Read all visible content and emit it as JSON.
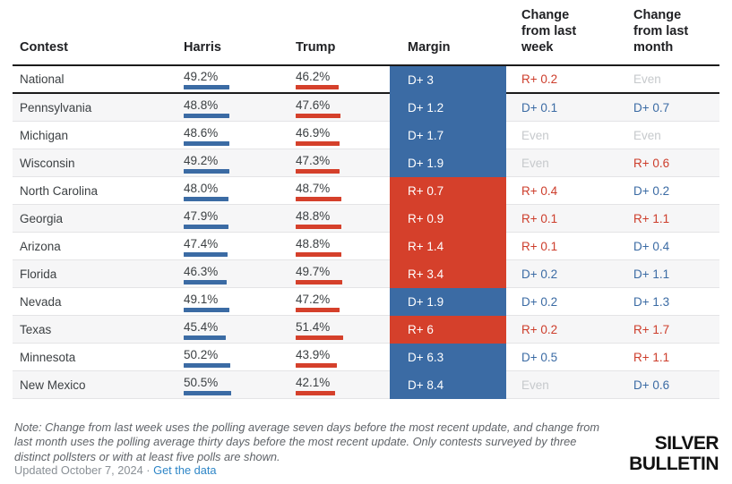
{
  "header": {
    "contest": "Contest",
    "harris": "Harris",
    "trump": "Trump",
    "margin": "Margin",
    "week": "Change from last week",
    "month": "Change from last month"
  },
  "rows": [
    {
      "contest": "National",
      "harris": "49.2%",
      "trump": "46.2%",
      "harris_pct": 49.2,
      "trump_pct": 46.2,
      "margin": "D+ 3",
      "week": "R+ 0.2",
      "month": "Even",
      "heavy": true,
      "striped": false
    },
    {
      "contest": "Pennsylvania",
      "harris": "48.8%",
      "trump": "47.6%",
      "harris_pct": 48.8,
      "trump_pct": 47.6,
      "margin": "D+ 1.2",
      "week": "D+ 0.1",
      "month": "D+ 0.7",
      "heavy": false,
      "striped": true
    },
    {
      "contest": "Michigan",
      "harris": "48.6%",
      "trump": "46.9%",
      "harris_pct": 48.6,
      "trump_pct": 46.9,
      "margin": "D+ 1.7",
      "week": "Even",
      "month": "Even",
      "heavy": false,
      "striped": false
    },
    {
      "contest": "Wisconsin",
      "harris": "49.2%",
      "trump": "47.3%",
      "harris_pct": 49.2,
      "trump_pct": 47.3,
      "margin": "D+ 1.9",
      "week": "Even",
      "month": "R+ 0.6",
      "heavy": false,
      "striped": true
    },
    {
      "contest": "North Carolina",
      "harris": "48.0%",
      "trump": "48.7%",
      "harris_pct": 48.0,
      "trump_pct": 48.7,
      "margin": "R+ 0.7",
      "week": "R+ 0.4",
      "month": "D+ 0.2",
      "heavy": false,
      "striped": false
    },
    {
      "contest": "Georgia",
      "harris": "47.9%",
      "trump": "48.8%",
      "harris_pct": 47.9,
      "trump_pct": 48.8,
      "margin": "R+ 0.9",
      "week": "R+ 0.1",
      "month": "R+ 1.1",
      "heavy": false,
      "striped": true
    },
    {
      "contest": "Arizona",
      "harris": "47.4%",
      "trump": "48.8%",
      "harris_pct": 47.4,
      "trump_pct": 48.8,
      "margin": "R+ 1.4",
      "week": "R+ 0.1",
      "month": "D+ 0.4",
      "heavy": false,
      "striped": false
    },
    {
      "contest": "Florida",
      "harris": "46.3%",
      "trump": "49.7%",
      "harris_pct": 46.3,
      "trump_pct": 49.7,
      "margin": "R+ 3.4",
      "week": "D+ 0.2",
      "month": "D+ 1.1",
      "heavy": false,
      "striped": true
    },
    {
      "contest": "Nevada",
      "harris": "49.1%",
      "trump": "47.2%",
      "harris_pct": 49.1,
      "trump_pct": 47.2,
      "margin": "D+ 1.9",
      "week": "D+ 0.2",
      "month": "D+ 1.3",
      "heavy": false,
      "striped": false
    },
    {
      "contest": "Texas",
      "harris": "45.4%",
      "trump": "51.4%",
      "harris_pct": 45.4,
      "trump_pct": 51.4,
      "margin": "R+ 6",
      "week": "R+ 0.2",
      "month": "R+ 1.7",
      "heavy": false,
      "striped": true
    },
    {
      "contest": "Minnesota",
      "harris": "50.2%",
      "trump": "43.9%",
      "harris_pct": 50.2,
      "trump_pct": 43.9,
      "margin": "D+ 6.3",
      "week": "D+ 0.5",
      "month": "R+ 1.1",
      "heavy": false,
      "striped": false
    },
    {
      "contest": "New Mexico",
      "harris": "50.5%",
      "trump": "42.1%",
      "harris_pct": 50.5,
      "trump_pct": 42.1,
      "margin": "D+ 8.4",
      "week": "Even",
      "month": "D+ 0.6",
      "heavy": false,
      "striped": true
    }
  ],
  "footer": {
    "note": "Note: Change from last week uses the polling average seven days before the most recent update, and change from last month uses the polling average thirty days before the most recent update. Only contests surveyed by three distinct pollsters or with at least five polls are shown.",
    "updated": "Updated October 7, 2024",
    "separator": "·",
    "link": "Get the data",
    "logo_line1": "SILVER",
    "logo_line2": "BULLETIN"
  },
  "colors": {
    "dem_blue": "#3b6ba4",
    "rep_red": "#d5402b",
    "even_gray": "#c6c9cc",
    "link_blue": "#2e86c7"
  },
  "chart_data": {
    "type": "table",
    "title": "Harris vs. Trump polling averages",
    "columns": [
      "Contest",
      "Harris",
      "Trump",
      "Margin",
      "Change from last week",
      "Change from last month"
    ],
    "rows": [
      [
        "National",
        49.2,
        46.2,
        "D+ 3",
        "R+ 0.2",
        "Even"
      ],
      [
        "Pennsylvania",
        48.8,
        47.6,
        "D+ 1.2",
        "D+ 0.1",
        "D+ 0.7"
      ],
      [
        "Michigan",
        48.6,
        46.9,
        "D+ 1.7",
        "Even",
        "Even"
      ],
      [
        "Wisconsin",
        49.2,
        47.3,
        "D+ 1.9",
        "Even",
        "R+ 0.6"
      ],
      [
        "North Carolina",
        48.0,
        48.7,
        "R+ 0.7",
        "R+ 0.4",
        "D+ 0.2"
      ],
      [
        "Georgia",
        47.9,
        48.8,
        "R+ 0.9",
        "R+ 0.1",
        "R+ 1.1"
      ],
      [
        "Arizona",
        47.4,
        48.8,
        "R+ 1.4",
        "R+ 0.1",
        "D+ 0.4"
      ],
      [
        "Florida",
        46.3,
        49.7,
        "R+ 3.4",
        "D+ 0.2",
        "D+ 1.1"
      ],
      [
        "Nevada",
        49.1,
        47.2,
        "D+ 1.9",
        "D+ 0.2",
        "D+ 1.3"
      ],
      [
        "Texas",
        45.4,
        51.4,
        "R+ 6",
        "R+ 0.2",
        "R+ 1.7"
      ],
      [
        "Minnesota",
        50.2,
        43.9,
        "D+ 6.3",
        "D+ 0.5",
        "R+ 1.1"
      ],
      [
        "New Mexico",
        50.5,
        42.1,
        "D+ 8.4",
        "Even",
        "D+ 0.6"
      ]
    ],
    "legend_entries": [
      "Harris (blue)",
      "Trump (red)"
    ],
    "layout_hints": {
      "margin_cell_colored_by_leader": true,
      "mini_bars_proportional_to_pct": true
    }
  }
}
